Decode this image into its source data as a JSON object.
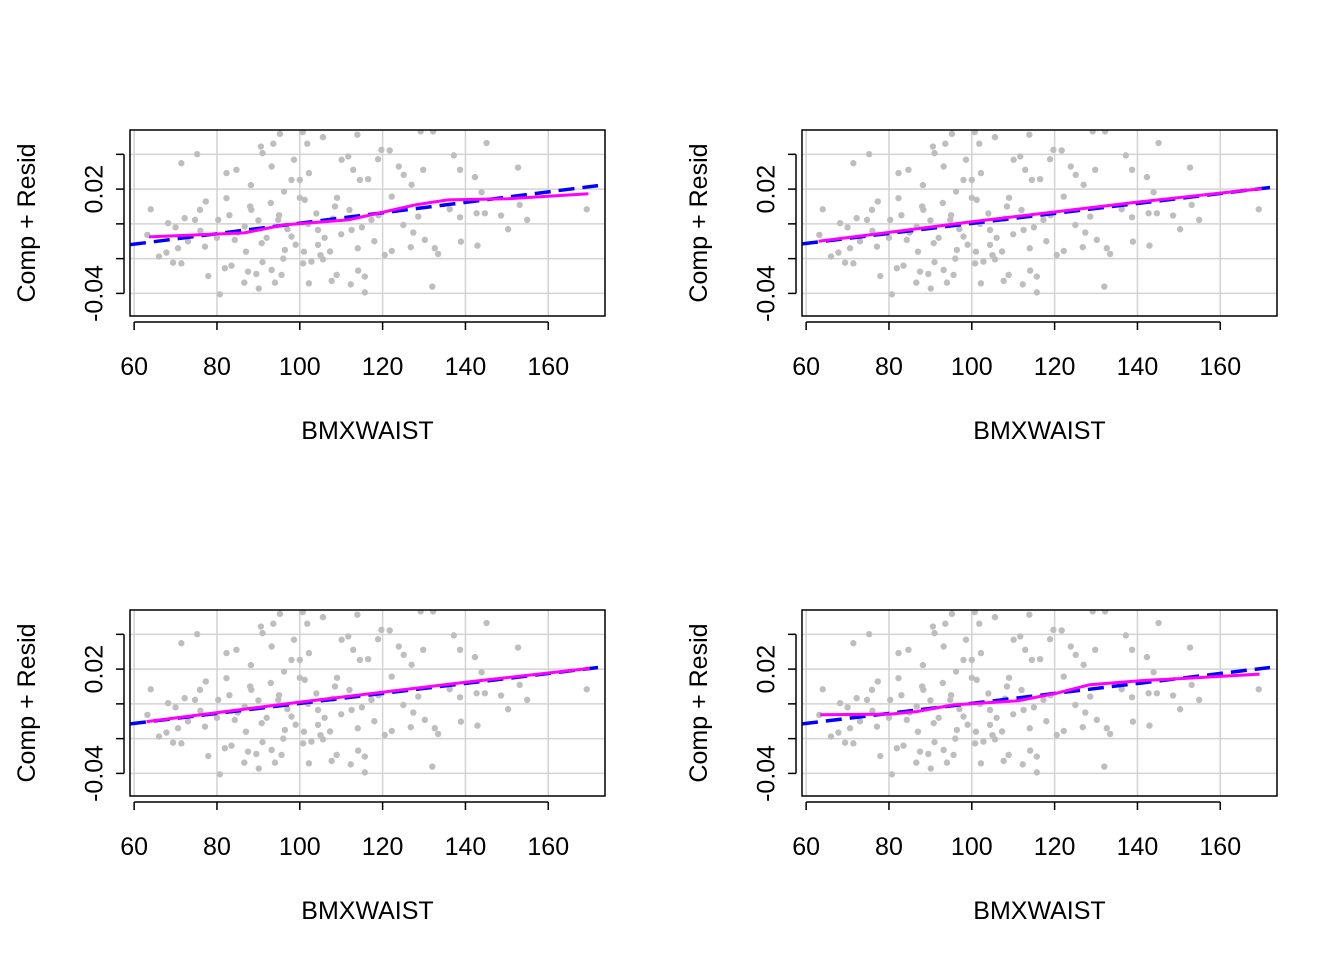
{
  "chart_data": {
    "type": "scatter",
    "layout": "2x2 panels",
    "grid": true,
    "colors": {
      "points": "#BEBEBE",
      "linear_fit": "#0000FF",
      "smooth": "#FF00FF",
      "grid": "#D3D3D3",
      "axes": "#000000"
    },
    "xlim": [
      59,
      173.7
    ],
    "ylim": [
      -0.053,
      0.054
    ],
    "x_ticks": [
      60,
      80,
      100,
      120,
      140,
      160
    ],
    "x_tick_labels": [
      "60",
      "80",
      "100",
      "120",
      "140",
      "160"
    ],
    "y_ticks": [
      -0.04,
      -0.02,
      0.0,
      0.02,
      0.04
    ],
    "y_tick_labels": [
      "-0.04",
      "",
      "",
      "0.02",
      ""
    ],
    "points": [
      [
        64.0,
        0.0084
      ],
      [
        63.2,
        -0.0063
      ],
      [
        66.0,
        -0.0188
      ],
      [
        67.8,
        -0.0165
      ],
      [
        69.4,
        -0.0223
      ],
      [
        71.4,
        -0.0227
      ],
      [
        71.4,
        0.0349
      ],
      [
        75.2,
        0.0401
      ],
      [
        72.2,
        0.0033
      ],
      [
        68.2,
        0.0004
      ],
      [
        70.6,
        -0.014
      ],
      [
        75.9,
        0.0081
      ],
      [
        77.3,
        0.0129
      ],
      [
        77.9,
        -0.03
      ],
      [
        80.7,
        -0.0405
      ],
      [
        82.3,
        0.0148
      ],
      [
        82.3,
        0.0292
      ],
      [
        84.7,
        0.0311
      ],
      [
        81.9,
        -0.0255
      ],
      [
        83.5,
        -0.024
      ],
      [
        86.6,
        -0.0338
      ],
      [
        87.5,
        -0.0275
      ],
      [
        89.5,
        -0.0288
      ],
      [
        90.1,
        -0.0372
      ],
      [
        88.2,
        0.0223
      ],
      [
        90.6,
        0.0445
      ],
      [
        91.0,
        0.0407
      ],
      [
        93.6,
        0.0461
      ],
      [
        95.2,
        0.0518
      ],
      [
        93.2,
        0.033
      ],
      [
        93.2,
        -0.0265
      ],
      [
        94.0,
        -0.0338
      ],
      [
        95.6,
        -0.0294
      ],
      [
        98.6,
        0.0369
      ],
      [
        96.2,
        0.0186
      ],
      [
        98.0,
        0.0253
      ],
      [
        100.0,
        0.0253
      ],
      [
        100.7,
        0.0528
      ],
      [
        101.8,
        0.0461
      ],
      [
        102.2,
        0.0292
      ],
      [
        100.8,
        -0.0227
      ],
      [
        102.2,
        -0.0342
      ],
      [
        102.8,
        -0.0217
      ],
      [
        105.6,
        0.0499
      ],
      [
        105.6,
        -0.0204
      ],
      [
        107.7,
        -0.0328
      ],
      [
        108.9,
        -0.0294
      ],
      [
        110.1,
        0.0369
      ],
      [
        111.7,
        0.0388
      ],
      [
        112.9,
        0.0311
      ],
      [
        113.9,
        0.0513
      ],
      [
        114.5,
        0.0253
      ],
      [
        116.5,
        0.0257
      ],
      [
        114.1,
        -0.0269
      ],
      [
        115.7,
        -0.0303
      ],
      [
        115.7,
        -0.0394
      ],
      [
        112.3,
        -0.0348
      ],
      [
        118.9,
        0.0372
      ],
      [
        119.7,
        0.0426
      ],
      [
        121.7,
        0.0422
      ],
      [
        123.9,
        0.033
      ],
      [
        125.1,
        0.0282
      ],
      [
        127.0,
        0.0225
      ],
      [
        129.8,
        0.0311
      ],
      [
        129.2,
        0.0532
      ],
      [
        132.2,
        0.0532
      ],
      [
        137.2,
        0.0394
      ],
      [
        138.7,
        0.0311
      ],
      [
        142.3,
        0.0269
      ],
      [
        143.9,
        0.0182
      ],
      [
        145.1,
        0.0465
      ],
      [
        152.7,
        0.0324
      ],
      [
        153.1,
        0.0109
      ],
      [
        154.9,
        0.0023
      ],
      [
        150.3,
        -0.0031
      ],
      [
        148.6,
        0.0048
      ],
      [
        144.7,
        0.0061
      ],
      [
        142.7,
        0.0061
      ],
      [
        142.9,
        -0.0125
      ],
      [
        138.9,
        -0.0102
      ],
      [
        138.7,
        0.0038
      ],
      [
        136.2,
        0.0084
      ],
      [
        132.6,
        -0.014
      ],
      [
        133.4,
        -0.0173
      ],
      [
        132.0,
        -0.0361
      ],
      [
        130.2,
        -0.0092
      ],
      [
        127.4,
        -0.005
      ],
      [
        126.8,
        -0.0134
      ],
      [
        125.0,
        -0.0006
      ],
      [
        120.5,
        -0.0179
      ],
      [
        122.2,
        -0.0156
      ],
      [
        107.3,
        -0.0159
      ],
      [
        104.4,
        -0.0121
      ],
      [
        96.4,
        -0.015
      ],
      [
        90.8,
        -0.0111
      ],
      [
        84.3,
        -0.0092
      ],
      [
        77.1,
        -0.0131
      ],
      [
        74.7,
        0.0023
      ],
      [
        88.3,
        0.0081
      ],
      [
        101.2,
        0.0138
      ],
      [
        108.5,
        0.01
      ],
      [
        94.8,
        0.0023
      ],
      [
        104.4,
        -0.0035
      ],
      [
        112.5,
        -0.0035
      ],
      [
        98.0,
        -0.0073
      ],
      [
        86.7,
        -0.0015
      ],
      [
        80.3,
        0.0023
      ],
      [
        117.3,
        0.0023
      ],
      [
        122.2,
        0.0157
      ],
      [
        128.6,
        0.0042
      ],
      [
        169.3,
        0.0084
      ],
      [
        85,
        -0.005
      ],
      [
        90,
        0.002
      ],
      [
        92,
        -0.008
      ],
      [
        95,
        0.005
      ],
      [
        97,
        -0.003
      ],
      [
        99,
        -0.012
      ],
      [
        102,
        0.0
      ],
      [
        104,
        0.006
      ],
      [
        106,
        -0.008
      ],
      [
        108,
        0.003
      ],
      [
        110,
        -0.006
      ],
      [
        112,
        0.008
      ],
      [
        115,
        -0.002
      ],
      [
        118,
        -0.01
      ],
      [
        88,
        0.01
      ],
      [
        93,
        0.012
      ],
      [
        100,
        0.015
      ],
      [
        105,
        -0.018
      ],
      [
        80,
        -0.008
      ],
      [
        83,
        0.005
      ],
      [
        76,
        -0.004
      ],
      [
        73,
        -0.01
      ],
      [
        70,
        -0.002
      ],
      [
        96,
        -0.02
      ],
      [
        101,
        -0.016
      ],
      [
        109,
        0.015
      ],
      [
        114,
        -0.014
      ],
      [
        119,
        0.005
      ],
      [
        87,
        -0.016
      ],
      [
        91,
        -0.022
      ]
    ],
    "panels": [
      {
        "xlabel": "BMXWAIST",
        "ylabel": "Comp + Resid",
        "linear_fit": [
          [
            59,
            -0.012
          ],
          [
            172,
            0.022
          ]
        ],
        "smooth": [
          [
            63.6,
            -0.0075
          ],
          [
            86.6,
            -0.0052
          ],
          [
            96.2,
            -0.0006
          ],
          [
            111.7,
            0.0023
          ],
          [
            120.4,
            0.0069
          ],
          [
            128.1,
            0.011
          ],
          [
            135.8,
            0.0138
          ],
          [
            150.3,
            0.0144
          ],
          [
            169.7,
            0.0173
          ]
        ]
      },
      {
        "xlabel": "BMXWAIST",
        "ylabel": "Comp + Resid",
        "linear_fit": [
          [
            59,
            -0.0115
          ],
          [
            172,
            0.0209
          ]
        ],
        "smooth": [
          [
            63,
            -0.01
          ],
          [
            100,
            0.0012
          ],
          [
            140,
            0.0125
          ],
          [
            170,
            0.0203
          ]
        ]
      },
      {
        "xlabel": "BMXWAIST",
        "ylabel": "Comp + Resid",
        "linear_fit": [
          [
            59,
            -0.0115
          ],
          [
            172,
            0.0209
          ]
        ],
        "smooth": [
          [
            63,
            -0.0102
          ],
          [
            100,
            0.001
          ],
          [
            140,
            0.0124
          ],
          [
            170,
            0.0204
          ]
        ]
      },
      {
        "xlabel": "BMXWAIST",
        "ylabel": "Comp + Resid",
        "linear_fit": [
          [
            59,
            -0.0115
          ],
          [
            172,
            0.0209
          ]
        ],
        "smooth": [
          [
            63.4,
            -0.0063
          ],
          [
            80.3,
            -0.0059
          ],
          [
            86.8,
            -0.0044
          ],
          [
            95.5,
            -0.0006
          ],
          [
            111,
            0.0017
          ],
          [
            120.6,
            0.0062
          ],
          [
            128.5,
            0.011
          ],
          [
            140.6,
            0.0133
          ],
          [
            152.6,
            0.0148
          ],
          [
            169.5,
            0.0171
          ]
        ]
      }
    ]
  }
}
